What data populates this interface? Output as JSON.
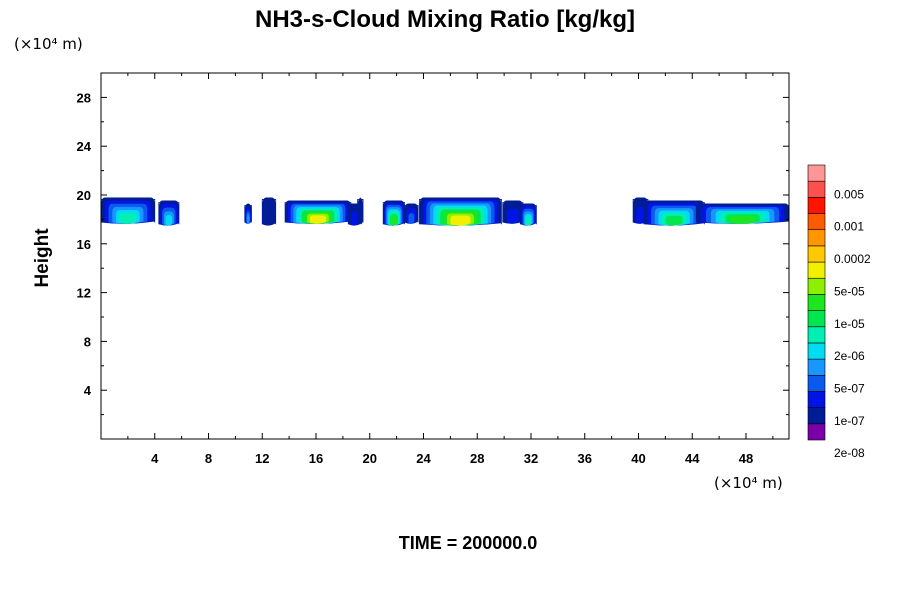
{
  "chart_data": {
    "type": "heatmap",
    "title": "NH3-s-Cloud Mixing Ratio [kg/kg]",
    "ylabel": "Height",
    "x_unit_label": "(×10⁴ m)",
    "y_unit_label": "(×10⁴ m)",
    "xlim": [
      0,
      51.2
    ],
    "ylim": [
      0,
      30
    ],
    "x_ticks": [
      4,
      8,
      12,
      16,
      20,
      24,
      28,
      32,
      36,
      40,
      44,
      48
    ],
    "y_ticks": [
      4,
      8,
      12,
      16,
      20,
      24,
      28
    ],
    "colorbar": {
      "labels": [
        "0.005",
        "0.001",
        "0.0002",
        "5e-05",
        "1e-05",
        "2e-06",
        "5e-07",
        "1e-07",
        "2e-08"
      ],
      "colors": [
        "#7b00a8",
        "#001c96",
        "#0014e6",
        "#0a5af0",
        "#1996ff",
        "#00dcf0",
        "#00f0b4",
        "#00e650",
        "#1ee61e",
        "#8cf000",
        "#f0f000",
        "#ffc800",
        "#ff9600",
        "#ff5a00",
        "#ff1400",
        "#ff5050",
        "#ff9696"
      ]
    },
    "cloud_layer": {
      "base_height": 17.6,
      "top_height": 19.8,
      "segments": [
        {
          "x": [
            0.0,
            4.0
          ],
          "level": 6
        },
        {
          "x": [
            4.3,
            5.8
          ],
          "level": 5
        },
        {
          "x": [
            10.7,
            11.2
          ],
          "level": 4
        },
        {
          "x": [
            12.0,
            13.0
          ],
          "level": 1
        },
        {
          "x": [
            13.7,
            18.6
          ],
          "level": 10
        },
        {
          "x": [
            18.4,
            19.4
          ],
          "level": 2
        },
        {
          "x": [
            19.1,
            19.5
          ],
          "level": 1
        },
        {
          "x": [
            21.0,
            22.6
          ],
          "level": 8
        },
        {
          "x": [
            22.6,
            23.6
          ],
          "level": 3
        },
        {
          "x": [
            23.7,
            29.8
          ],
          "level": 10
        },
        {
          "x": [
            29.9,
            31.4
          ],
          "level": 2
        },
        {
          "x": [
            31.2,
            32.4
          ],
          "level": 6
        },
        {
          "x": [
            39.6,
            40.7
          ],
          "level": 2
        },
        {
          "x": [
            40.4,
            44.9
          ],
          "level": 7
        },
        {
          "x": [
            44.3,
            51.2
          ],
          "level": 8
        }
      ]
    }
  },
  "time_label": "TIME = 200000.0"
}
